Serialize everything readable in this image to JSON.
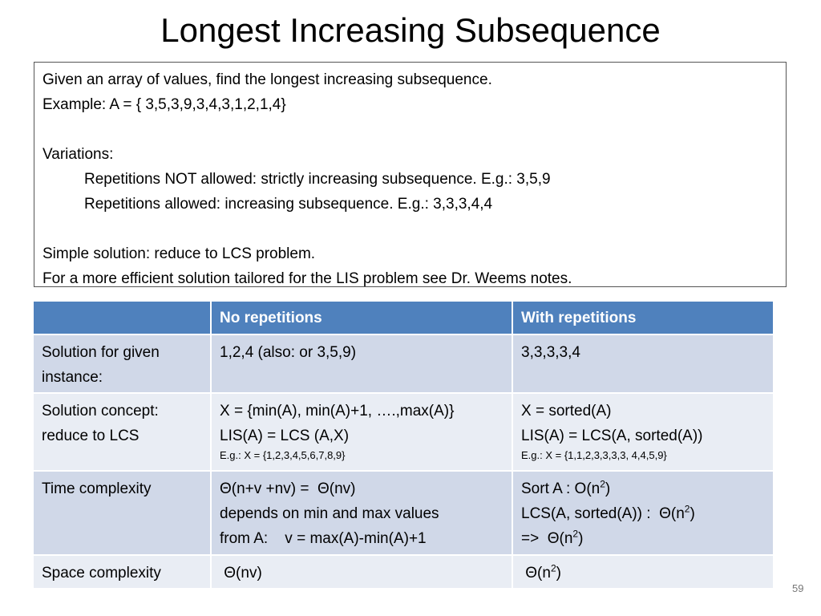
{
  "title": "Longest Increasing Subsequence",
  "intro": {
    "problem": [
      "Given an array of values, find the longest increasing subsequence.",
      "Example: A = { 3,5,3,9,3,4,3,1,2,1,4}"
    ],
    "variations": {
      "label": "Variations:",
      "items": [
        "Repetitions NOT allowed: strictly increasing subsequence. E.g.: 3,5,9",
        "Repetitions allowed: increasing subsequence. E.g.: 3,3,3,4,4"
      ]
    },
    "solution": [
      "Simple solution: reduce to LCS problem.",
      "For a more efficient solution tailored for the LIS problem see Dr. Weems notes."
    ]
  },
  "table": {
    "header": [
      "No repetitions",
      "With repetitions"
    ],
    "rows": [
      {
        "label": [
          "Solution for given",
          "instance:"
        ],
        "cells": [
          {
            "lines": [
              [
                "1,2,4 (also: or 3,5,9)"
              ]
            ]
          },
          {
            "lines": [
              [
                "3,3,3,3,4"
              ]
            ]
          }
        ]
      },
      {
        "label": [
          "Solution concept:",
          "reduce to LCS"
        ],
        "cells": [
          {
            "lines": [
              [
                "X = {min(A), min(A)+1, ….,max(A)}"
              ],
              [
                "LIS(A) = LCS (A,X)"
              ]
            ],
            "note": "E.g.: X = {1,2,3,4,5,6,7,8,9}"
          },
          {
            "lines": [
              [
                "X = sorted(A)"
              ],
              [
                "LIS(A) = LCS(A, sorted(A))"
              ]
            ],
            "note": "E.g.: X = {1,1,2,3,3,3,3, 4,4,5,9}"
          }
        ]
      },
      {
        "label": [
          "Time complexity"
        ],
        "cells": [
          {
            "lines": [
              [
                "Θ(n+v +nv) =  Θ(nv)"
              ],
              [
                "depends on min and max values"
              ],
              [
                "from A:    v = max(A)-min(A)+1"
              ]
            ]
          },
          {
            "lines": [
              [
                "Sort A : O(n",
                {
                  "sup": "2"
                },
                ")"
              ],
              [
                "LCS(A, sorted(A)) :  Θ(n",
                {
                  "sup": "2"
                },
                ")"
              ],
              [
                "=>  Θ(n",
                {
                  "sup": "2"
                },
                ")"
              ]
            ]
          }
        ]
      },
      {
        "label": [
          "Space complexity"
        ],
        "cells": [
          {
            "lines": [
              [
                " Θ(nv)"
              ]
            ]
          },
          {
            "lines": [
              [
                " Θ(n",
                {
                  "sup": "2"
                },
                ")"
              ]
            ]
          }
        ]
      }
    ]
  },
  "page_number": "59"
}
